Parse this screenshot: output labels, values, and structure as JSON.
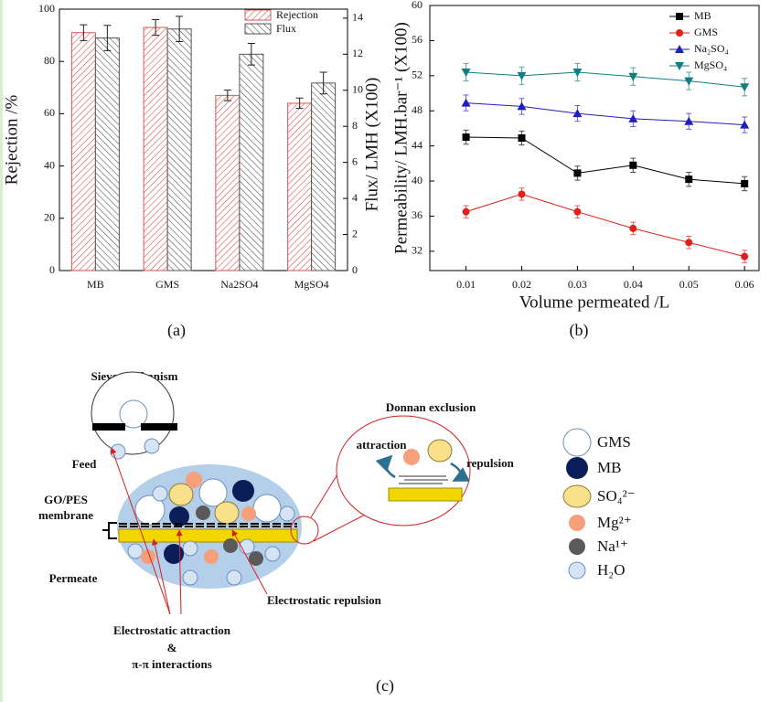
{
  "chart_data": [
    {
      "type": "bar",
      "caption": "(a)",
      "categories": [
        "MB",
        "GMS",
        "Na2SO4",
        "MgSO4"
      ],
      "series": [
        {
          "name": "Rejection",
          "color": "#d9534f",
          "values": [
            91,
            93,
            67,
            64
          ],
          "errors": [
            3,
            3,
            2,
            2
          ]
        },
        {
          "name": "Flux",
          "color": "#555555",
          "axis": "y2",
          "values": [
            12.9,
            13.4,
            12.0,
            10.4
          ],
          "errors": [
            0.7,
            0.7,
            0.6,
            0.6
          ]
        }
      ],
      "y_label": "Rejection /%",
      "y2_label": "Flux/ LMH (X100)",
      "ylim": [
        0,
        100
      ],
      "yticks": [
        0,
        20,
        40,
        60,
        80,
        100
      ],
      "y2lim": [
        0,
        14.5
      ],
      "y2ticks": [
        0,
        2,
        4,
        6,
        8,
        10,
        12,
        14
      ],
      "legend": "upper right"
    },
    {
      "type": "line",
      "caption": "(b)",
      "x": [
        0.01,
        0.02,
        0.03,
        0.04,
        0.05,
        0.06
      ],
      "series": [
        {
          "name": "MB",
          "color": "#000000",
          "marker": "square",
          "values": [
            45.0,
            44.9,
            40.9,
            41.8,
            40.2,
            39.7
          ],
          "errors": [
            0.8,
            0.8,
            0.8,
            0.8,
            0.8,
            0.8
          ]
        },
        {
          "name": "GMS",
          "color": "#e0201b",
          "marker": "circle",
          "values": [
            36.5,
            38.5,
            36.5,
            34.6,
            33.0,
            31.4
          ],
          "errors": [
            0.7,
            0.7,
            0.7,
            0.7,
            0.7,
            0.7
          ]
        },
        {
          "name": "Na₂SO₄",
          "color": "#1f1fbf",
          "marker": "triangle",
          "values": [
            48.9,
            48.5,
            47.7,
            47.1,
            46.8,
            46.4
          ],
          "errors": [
            0.9,
            0.9,
            0.9,
            0.9,
            0.9,
            0.9
          ]
        },
        {
          "name": "MgSO₄",
          "color": "#0f7f7f",
          "marker": "triangle-down",
          "values": [
            52.4,
            52.0,
            52.4,
            51.9,
            51.4,
            50.7
          ],
          "errors": [
            1.0,
            1.0,
            1.0,
            1.0,
            1.0,
            1.0
          ]
        }
      ],
      "x_label": "Volume permeated /L",
      "y_label": "Permeability/ LMH.bar⁻¹ (X100)",
      "xlim": [
        0.0035,
        0.0626
      ],
      "xticks": [
        0.01,
        0.02,
        0.03,
        0.04,
        0.05,
        0.06
      ],
      "ylim": [
        29.8,
        60
      ],
      "yticks": [
        32,
        36,
        40,
        44,
        48,
        52,
        56,
        60
      ],
      "legend": "upper right"
    }
  ],
  "diagram": {
    "caption": "(c)",
    "sieve": "Sieve mechanism",
    "feed": "Feed",
    "membrane": [
      "GO/PES",
      "membrane"
    ],
    "permeate": "Permeate",
    "donnan": {
      "title": "Donnan exclusion",
      "attraction": "attraction",
      "repulsion": "repulsion"
    },
    "electrostatic_repulsion": "Electrostatic repulsion",
    "electrostatic_attraction": [
      "Electrostatic attraction",
      "&",
      "π-π interactions"
    ],
    "legend": [
      "GMS",
      "MB",
      "SO₄²⁻",
      "Mg²⁺",
      "Na¹⁺",
      "H₂O"
    ]
  }
}
